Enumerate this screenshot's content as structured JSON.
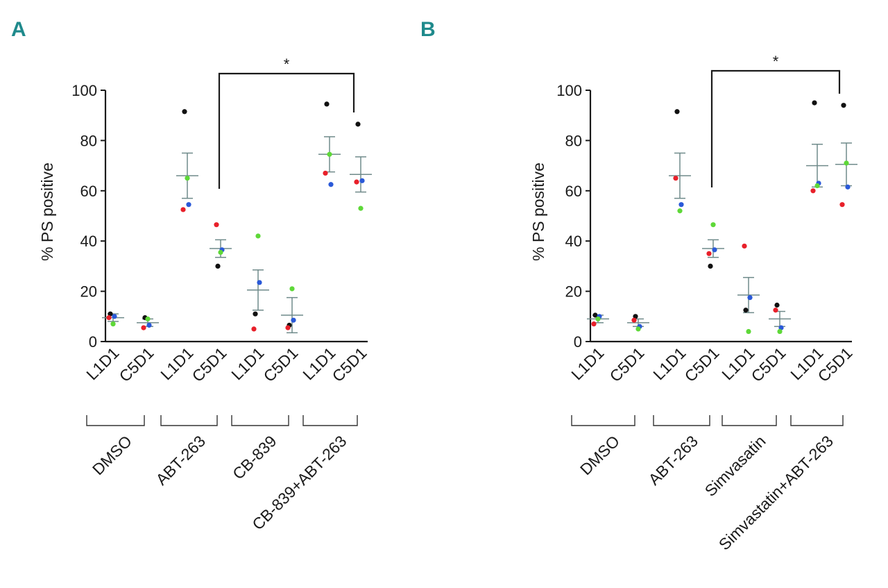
{
  "figure": {
    "panels_letters": [
      "A",
      "B"
    ]
  },
  "colors": {
    "axis": "#1a1a1a",
    "mean_sem": "#6f8a8a",
    "letter": "#1f8a8c",
    "black": "#111111",
    "red": "#e8202a",
    "blue": "#2a59d8",
    "green": "#5ed838"
  },
  "chart_data": [
    {
      "panel": "A",
      "type": "scatter",
      "ylabel": "% PS positive",
      "ylim": [
        0,
        100
      ],
      "yticks": [
        "0",
        "20",
        "40",
        "60",
        "80",
        "100"
      ],
      "categories": [
        "L1D1",
        "C5D1",
        "L1D1",
        "C5D1",
        "L1D1",
        "C5D1",
        "L1D1",
        "C5D1"
      ],
      "groups": [
        {
          "label": "DMSO",
          "span": [
            0,
            1
          ]
        },
        {
          "label": "ABT-263",
          "span": [
            2,
            3
          ]
        },
        {
          "label": "CB-839",
          "span": [
            4,
            5
          ]
        },
        {
          "label": "CB-839+ABT-263",
          "span": [
            6,
            7
          ]
        }
      ],
      "series": [
        {
          "name": "black",
          "color": "black",
          "values": [
            11,
            9.5,
            91.5,
            30,
            11,
            6.5,
            94.5,
            86.5
          ]
        },
        {
          "name": "red",
          "color": "red",
          "values": [
            9.5,
            5.5,
            52.5,
            46.5,
            5,
            5.5,
            67,
            63.5
          ]
        },
        {
          "name": "blue",
          "color": "blue",
          "values": [
            10,
            6.5,
            54.5,
            36.5,
            23.5,
            8.5,
            62.5,
            64
          ]
        },
        {
          "name": "green",
          "color": "green",
          "values": [
            7,
            9,
            65,
            35.5,
            42,
            21,
            74.5,
            53
          ]
        }
      ],
      "mean": [
        9.5,
        7.5,
        66,
        37,
        20.5,
        10.5,
        74.5,
        66.5
      ],
      "sem": [
        1.5,
        1.5,
        9,
        3.5,
        8,
        7,
        7,
        7
      ],
      "significance": {
        "from": 3,
        "to": 7,
        "label": "*"
      }
    },
    {
      "panel": "B",
      "type": "scatter",
      "ylabel": "% PS positive",
      "ylim": [
        0,
        100
      ],
      "yticks": [
        "0",
        "20",
        "40",
        "60",
        "80",
        "100"
      ],
      "categories": [
        "L1D1",
        "C5D1",
        "L1D1",
        "C5D1",
        "L1D1",
        "C5D1",
        "L1D1",
        "C5D1"
      ],
      "groups": [
        {
          "label": "DMSO",
          "span": [
            0,
            1
          ]
        },
        {
          "label": "ABT-263",
          "span": [
            2,
            3
          ]
        },
        {
          "label": "Simvasatin",
          "span": [
            4,
            5
          ]
        },
        {
          "label": "Simvastatin+ABT-263",
          "span": [
            6,
            7
          ]
        }
      ],
      "series": [
        {
          "name": "black",
          "color": "black",
          "values": [
            10.5,
            10,
            91.5,
            30,
            12.5,
            14.5,
            95,
            94
          ]
        },
        {
          "name": "red",
          "color": "red",
          "values": [
            7,
            8.5,
            65,
            35,
            38,
            12.5,
            60,
            54.5
          ]
        },
        {
          "name": "blue",
          "color": "blue",
          "values": [
            10,
            6,
            54.5,
            36.5,
            17.5,
            5.5,
            63,
            61.5
          ]
        },
        {
          "name": "green",
          "color": "green",
          "values": [
            9,
            5,
            52,
            46.5,
            4,
            4,
            62,
            71
          ]
        }
      ],
      "mean": [
        9,
        7.5,
        66,
        37,
        18.5,
        9,
        70,
        70.5
      ],
      "sem": [
        1.5,
        1.5,
        9,
        3.5,
        7,
        3,
        8.5,
        8.5
      ],
      "significance": {
        "from": 3,
        "to": 7,
        "label": "*"
      }
    }
  ]
}
